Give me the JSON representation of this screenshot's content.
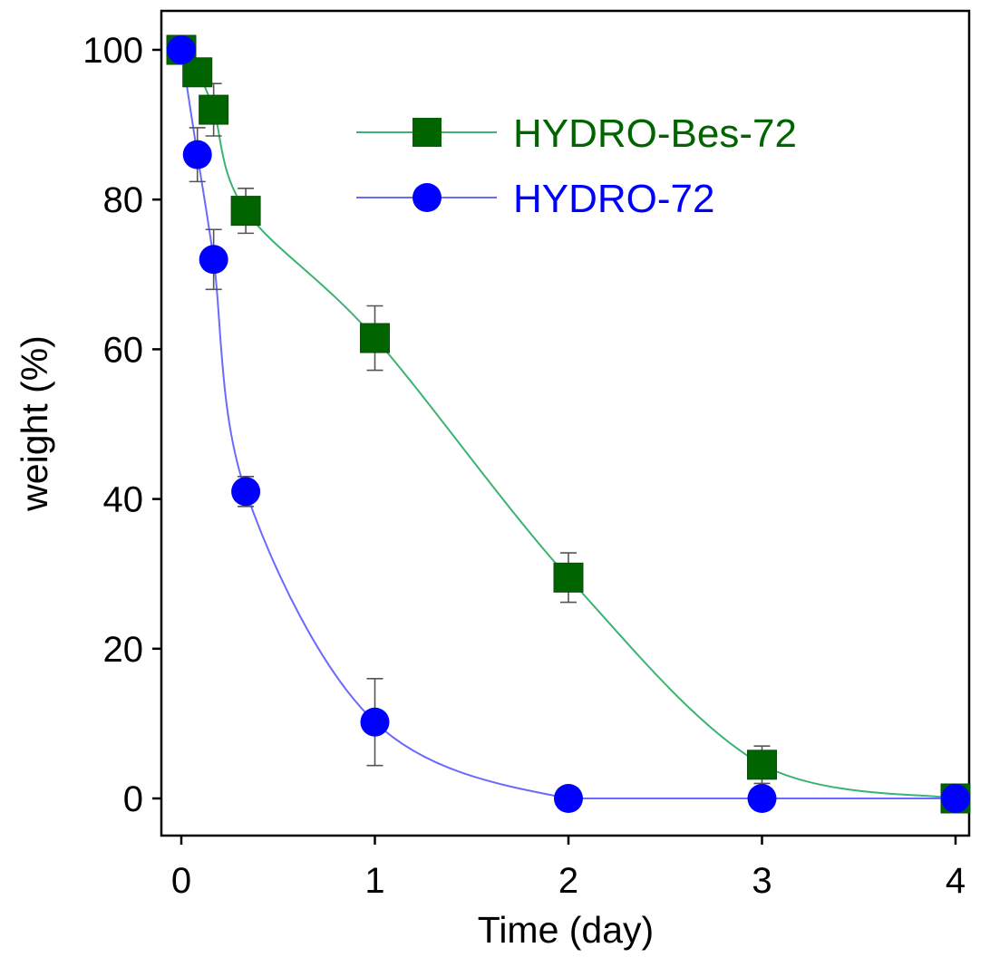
{
  "chart_data": {
    "type": "line",
    "title": "",
    "xlabel": "Time (day)",
    "ylabel": "weight (%)",
    "xlim": [
      -0.1,
      4.05
    ],
    "ylim": [
      -5,
      105
    ],
    "xticks": [
      0,
      1,
      2,
      3,
      4
    ],
    "yticks": [
      0,
      20,
      40,
      60,
      80,
      100
    ],
    "grid": false,
    "legend_position": "top-right",
    "series": [
      {
        "name": "HYDRO-Bes-72",
        "color": "#006400",
        "line_color": "#3cb371",
        "marker": "square",
        "x": [
          0,
          0.083,
          0.167,
          0.333,
          1,
          2,
          3,
          4
        ],
        "y": [
          100,
          97,
          92,
          78.5,
          61.5,
          29.5,
          4.5,
          0
        ],
        "err": [
          0,
          1.5,
          3.5,
          3,
          4.3,
          3.3,
          2.5,
          0
        ]
      },
      {
        "name": "HYDRO-72",
        "color": "#0000ff",
        "line_color": "#6a6aff",
        "marker": "circle",
        "x": [
          0,
          0.083,
          0.167,
          0.333,
          1,
          2,
          3,
          4
        ],
        "y": [
          100,
          86,
          72,
          41,
          10.2,
          0,
          0,
          0
        ],
        "err": [
          0,
          3.6,
          4,
          2,
          5.8,
          0,
          0,
          0
        ]
      }
    ]
  }
}
